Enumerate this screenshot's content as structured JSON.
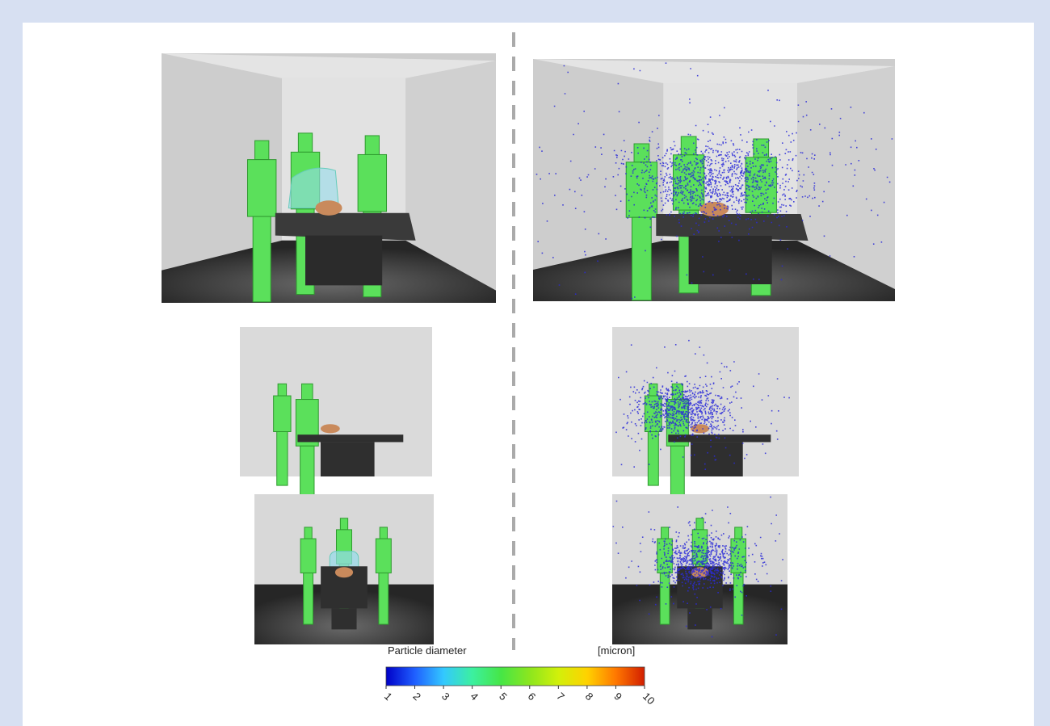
{
  "legend": {
    "title": "Particle diameter",
    "unit": "[micron]",
    "range": [
      1,
      10
    ],
    "ticks": [
      1,
      2,
      3,
      4,
      5,
      6,
      7,
      8,
      9,
      10
    ],
    "colors": [
      "#0000c8",
      "#1f5fff",
      "#33c8ff",
      "#3cf0a0",
      "#46e646",
      "#8ce61e",
      "#d2f00a",
      "#ffd200",
      "#ff7800",
      "#d21e00"
    ]
  }
}
